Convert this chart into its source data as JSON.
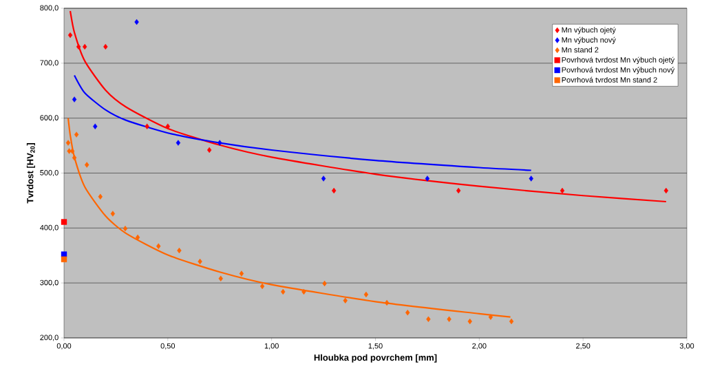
{
  "chart_data": {
    "type": "scatter",
    "xlabel": "Hloubka pod povrchem [mm]",
    "ylabel": "Tvrdost [HV$_{20}$]",
    "xlim": [
      0,
      3
    ],
    "ylim": [
      200,
      800
    ],
    "xticks": [
      {
        "value": 0,
        "label": "0,00"
      },
      {
        "value": 0.5,
        "label": "0,50"
      },
      {
        "value": 1,
        "label": "1,00"
      },
      {
        "value": 1.5,
        "label": "1,50"
      },
      {
        "value": 2,
        "label": "2,00"
      },
      {
        "value": 2.5,
        "label": "2,50"
      },
      {
        "value": 3,
        "label": "3,00"
      }
    ],
    "yticks": [
      {
        "value": 200,
        "label": "200,0"
      },
      {
        "value": 300,
        "label": "300,0"
      },
      {
        "value": 400,
        "label": "400,0"
      },
      {
        "value": 500,
        "label": "500,0"
      },
      {
        "value": 600,
        "label": "600,0"
      },
      {
        "value": 700,
        "label": "700,0"
      },
      {
        "value": 800,
        "label": "800,0"
      }
    ],
    "grid": "y",
    "legend": "top right",
    "series": [
      {
        "name": "Mn výbuch ojetý",
        "marker": "diamond",
        "color": "#ff0000",
        "x": [
          0.03,
          0.07,
          0.1,
          0.2,
          0.4,
          0.5,
          0.7,
          1.3,
          1.9,
          2.4,
          2.9
        ],
        "values": [
          751,
          730,
          730,
          730,
          585,
          585,
          542,
          468,
          468,
          468,
          468
        ]
      },
      {
        "name": "Mn výbuch nový",
        "marker": "diamond",
        "color": "#0000ff",
        "x": [
          0.05,
          0.15,
          0.35,
          0.55,
          0.75,
          1.25,
          1.75,
          2.25
        ],
        "values": [
          634,
          585,
          775,
          555,
          555,
          490,
          490,
          490
        ]
      },
      {
        "name": "Mn stand 2",
        "marker": "diamond",
        "color": "#ff6600",
        "x": [
          0.02,
          0.025,
          0.04,
          0.05,
          0.06,
          0.11,
          0.175,
          0.235,
          0.295,
          0.355,
          0.455,
          0.555,
          0.655,
          0.755,
          0.855,
          0.955,
          1.055,
          1.155,
          1.255,
          1.355,
          1.455,
          1.555,
          1.655,
          1.755,
          1.855,
          1.955,
          2.055,
          2.155
        ],
        "values": [
          555,
          540,
          540,
          528,
          570,
          515,
          457,
          426,
          399,
          383,
          367,
          359,
          339,
          308,
          317,
          294,
          284,
          284,
          299,
          268,
          279,
          264,
          246,
          234,
          234,
          230,
          238,
          230
        ]
      },
      {
        "name": "Povrhová tvrdost Mn výbuch ojetý",
        "marker": "square",
        "color": "#ff0000",
        "x": [
          0
        ],
        "values": [
          411
        ]
      },
      {
        "name": "Povrhová tvrdost Mn výbuch nový",
        "marker": "square",
        "color": "#0000ff",
        "x": [
          0
        ],
        "values": [
          352
        ]
      },
      {
        "name": "Povrhová tvrdost Mn stand 2",
        "marker": "square",
        "color": "#ff6600",
        "x": [
          0
        ],
        "values": [
          343
        ]
      },
      {
        "type": "line",
        "color": "#ff0000",
        "x": [
          0.03,
          0.05,
          0.1,
          0.2,
          0.3,
          0.5,
          0.75,
          1,
          1.5,
          2,
          2.5,
          2.9
        ],
        "values": [
          795,
          756,
          704,
          651,
          620,
          581,
          551,
          529,
          498,
          476,
          459,
          448
        ]
      },
      {
        "type": "line",
        "color": "#0000ff",
        "x": [
          0.05,
          0.1,
          0.2,
          0.3,
          0.5,
          0.75,
          1,
          1.5,
          2,
          2.25
        ],
        "values": [
          678,
          646,
          615,
          596,
          573,
          555,
          542,
          523,
          510,
          505
        ]
      },
      {
        "type": "line",
        "color": "#ff6600",
        "x": [
          0.02,
          0.03,
          0.05,
          0.1,
          0.2,
          0.3,
          0.5,
          0.75,
          1,
          1.5,
          2,
          2.15
        ],
        "values": [
          600,
          569,
          529,
          475,
          422,
          390,
          351,
          320,
          297,
          266,
          244,
          238
        ]
      }
    ]
  }
}
